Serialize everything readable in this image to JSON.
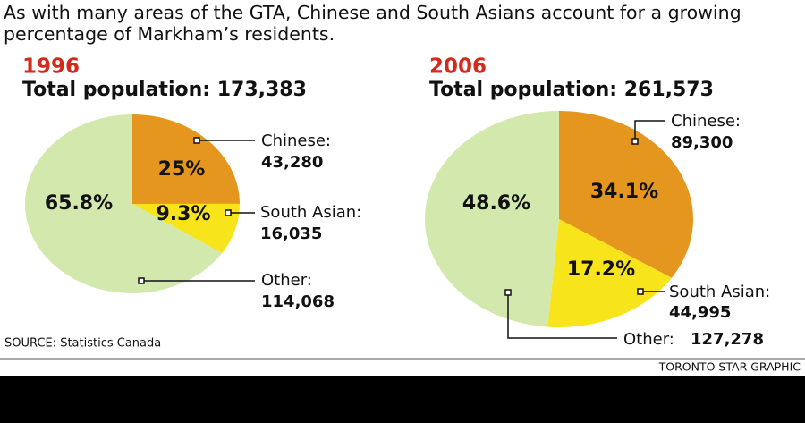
{
  "title": "As with many areas of the GTA, Chinese and South Asians account for a growing percentage of Markham’s residents.",
  "source": "SOURCE: Statistics Canada",
  "credit": "TORONTO STAR GRAPHIC",
  "chart_data": [
    {
      "type": "pie",
      "title": "1996",
      "subtitle": "Total population: 173,383",
      "categories": [
        "Chinese:",
        "South Asian:",
        "Other:"
      ],
      "values": [
        25,
        9.3,
        65.8
      ],
      "value_labels": [
        "25%",
        "9.3%",
        "65.8%"
      ],
      "counts": [
        43280,
        16035,
        114068
      ],
      "count_labels": [
        "43,280",
        "16,035",
        "114,068"
      ],
      "colors": [
        "#e4961e",
        "#f7e41a",
        "#d3e8ad"
      ]
    },
    {
      "type": "pie",
      "title": "2006",
      "subtitle": "Total population: 261,573",
      "categories": [
        "Chinese:",
        "South Asian:",
        "Other:"
      ],
      "values": [
        34.1,
        17.2,
        48.6
      ],
      "value_labels": [
        "34.1%",
        "17.2%",
        "48.6%"
      ],
      "counts": [
        89300,
        44995,
        127278
      ],
      "count_labels": [
        "89,300",
        "44,995",
        "127,278"
      ],
      "colors": [
        "#e4961e",
        "#f7e41a",
        "#d3e8ad"
      ]
    }
  ]
}
